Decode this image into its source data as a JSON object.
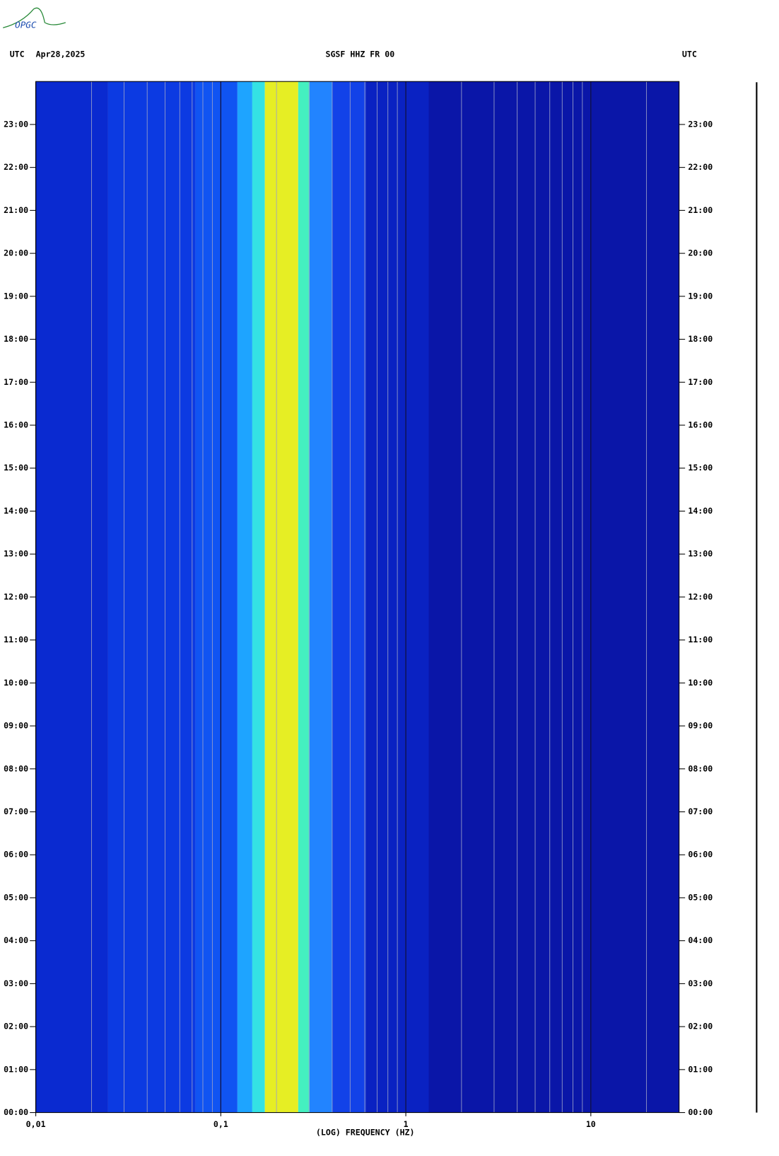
{
  "chart_data": {
    "type": "spectrogram",
    "logo": "OPGC",
    "title": "SGSF HHZ FR 00",
    "left_label": "UTC",
    "date": "Apr28,2025",
    "right_label": "UTC",
    "x_label": "(LOG) FREQUENCY (HZ)",
    "log_x": true,
    "xlim": [
      0.01,
      30
    ],
    "xticks": [
      {
        "value": 0.01,
        "label": "0,01"
      },
      {
        "value": 0.1,
        "label": "0,1"
      },
      1,
      10
    ],
    "xgrid": [
      0.02,
      0.03,
      0.04,
      0.05,
      0.06,
      0.07,
      0.08,
      0.09,
      0.2,
      0.3,
      0.4,
      0.5,
      0.6,
      0.7,
      0.8,
      0.9,
      2,
      3,
      4,
      5,
      6,
      7,
      8,
      9,
      20
    ],
    "ylim": [
      0,
      24
    ],
    "yticks": [
      {
        "value": 0,
        "label": "00:00"
      },
      {
        "value": 1,
        "label": "01:00"
      },
      {
        "value": 2,
        "label": "02:00"
      },
      {
        "value": 3,
        "label": "03:00"
      },
      {
        "value": 4,
        "label": "04:00"
      },
      {
        "value": 5,
        "label": "05:00"
      },
      {
        "value": 6,
        "label": "06:00"
      },
      {
        "value": 7,
        "label": "07:00"
      },
      {
        "value": 8,
        "label": "08:00"
      },
      {
        "value": 9,
        "label": "09:00"
      },
      {
        "value": 10,
        "label": "10:00"
      },
      {
        "value": 11,
        "label": "11:00"
      },
      {
        "value": 12,
        "label": "12:00"
      },
      {
        "value": 13,
        "label": "13:00"
      },
      {
        "value": 14,
        "label": "14:00"
      },
      {
        "value": 15,
        "label": "15:00"
      },
      {
        "value": 16,
        "label": "16:00"
      },
      {
        "value": 17,
        "label": "17:00"
      },
      {
        "value": 18,
        "label": "18:00"
      },
      {
        "value": 19,
        "label": "19:00"
      },
      {
        "value": 20,
        "label": "20:00"
      },
      {
        "value": 21,
        "label": "21:00"
      },
      {
        "value": 22,
        "label": "22:00"
      },
      {
        "value": 23,
        "label": "23:00"
      }
    ],
    "bands": {
      "edges": [
        0.01,
        0.0246,
        0.073,
        0.123,
        0.148,
        0.173,
        0.262,
        0.302,
        0.399,
        0.606,
        1.33,
        30
      ],
      "colors": [
        "#0a2ad0",
        "#0c3ae2",
        "#1054f2",
        "#1ea4ff",
        "#34e2e4",
        "#e6ee24",
        "#44f0c0",
        "#2284ff",
        "#1242e8",
        "#0a22c2",
        "#0a16a8"
      ]
    }
  }
}
